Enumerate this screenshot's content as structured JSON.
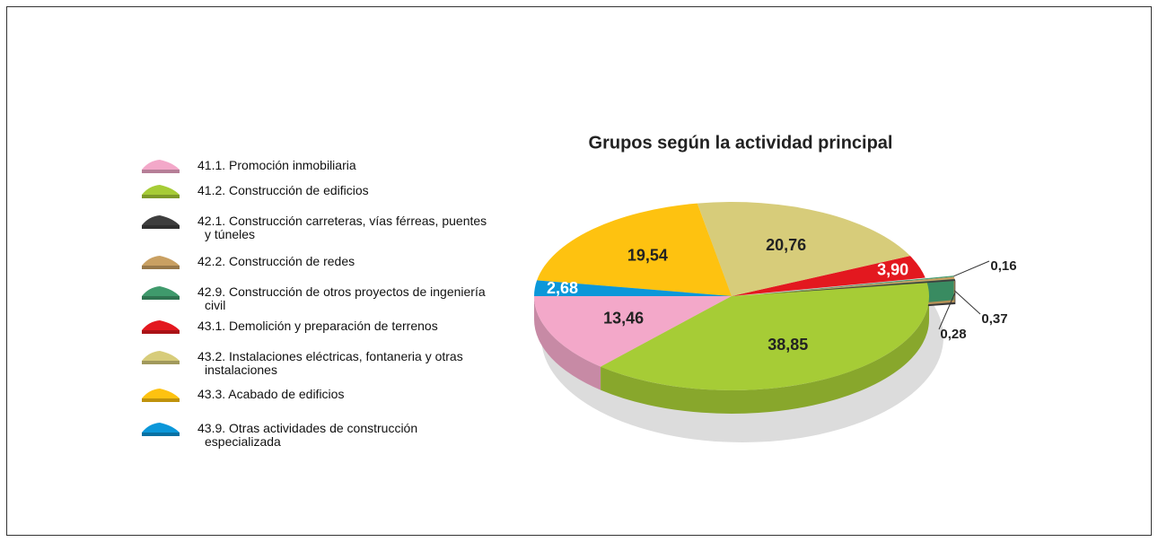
{
  "chart_data": {
    "type": "pie",
    "title": "Grupos según la actividad principal",
    "categories": [
      "41.1. Promoción inmobiliaria",
      "41.2. Construcción de edificios",
      "42.1. Construcción carreteras, vías férreas, puentes y túneles",
      "42.2. Construcción de redes",
      "42.9. Construcción de otros proyectos de ingeniería civil",
      "43.1. Demolición y preparación de terrenos",
      "43.2. Instalaciones eléctricas, fontaneria y otras instalaciones",
      "43.3. Acabado de edificios",
      "43.9. Otras actividades de construcción especializada"
    ],
    "values": [
      13.46,
      38.85,
      0.28,
      0.37,
      0.16,
      3.9,
      20.76,
      19.54,
      2.68
    ],
    "value_labels": [
      "13,46",
      "38,85",
      "0,28",
      "0,37",
      "0,16",
      "3,90",
      "20,76",
      "19,54",
      "2,68"
    ],
    "colors": [
      "#f3a8c9",
      "#a6cc36",
      "#3e3e3e",
      "#c9a062",
      "#3f9a6c",
      "#e3181f",
      "#d7cc7a",
      "#fec210",
      "#0b97d9"
    ]
  }
}
